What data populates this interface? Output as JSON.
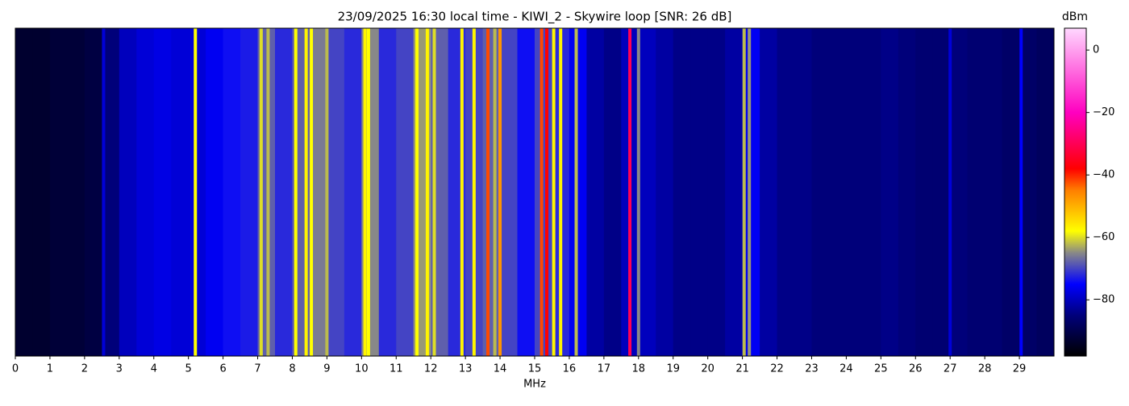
{
  "chart_data": {
    "type": "waterfall",
    "title": "23/09/2025 16:30 local time - KIWI_2 - Skywire loop [SNR: 26 dB]",
    "xlabel": "MHz",
    "colorbar_label": "dBm",
    "xlim": [
      0,
      30
    ],
    "xticks": [
      0,
      1,
      2,
      3,
      4,
      5,
      6,
      7,
      8,
      9,
      10,
      11,
      12,
      13,
      14,
      15,
      16,
      17,
      18,
      19,
      20,
      21,
      22,
      23,
      24,
      25,
      26,
      27,
      28,
      29
    ],
    "clim": [
      -98,
      7
    ],
    "cticks": [
      {
        "value": -80,
        "label": "−80"
      },
      {
        "value": -60,
        "label": "−60"
      },
      {
        "value": -40,
        "label": "−40"
      },
      {
        "value": -20,
        "label": "−20"
      },
      0
    ],
    "colorscale": [
      [
        -98,
        "#000000"
      ],
      [
        -85,
        "#00007a"
      ],
      [
        -75,
        "#0000ff"
      ],
      [
        -65,
        "#888888"
      ],
      [
        -58,
        "#ffff00"
      ],
      [
        -45,
        "#ff8000"
      ],
      [
        -38,
        "#ff0000"
      ],
      [
        -20,
        "#ff00c0"
      ],
      [
        7,
        "#ffd8ff"
      ]
    ],
    "x": [
      0,
      0.5,
      1,
      1.5,
      2,
      2.5,
      3,
      3.5,
      4,
      4.5,
      5,
      5.5,
      6,
      6.5,
      7,
      7.5,
      8,
      8.5,
      9,
      9.5,
      10,
      10.5,
      11,
      11.5,
      12,
      12.5,
      13,
      13.5,
      14,
      14.5,
      15,
      15.5,
      16,
      16.5,
      17,
      17.5,
      18,
      18.5,
      19,
      19.5,
      20,
      20.5,
      21,
      21.5,
      22,
      22.5,
      23,
      23.5,
      24,
      24.5,
      25,
      25.5,
      26,
      26.5,
      27,
      27.5,
      28,
      28.5,
      29,
      29.5
    ],
    "values": [
      -93,
      -93,
      -92,
      -92,
      -91,
      -85,
      -80,
      -78,
      -77,
      -78,
      -78,
      -76,
      -74,
      -73,
      -68,
      -72,
      -68,
      -66,
      -70,
      -72,
      -65,
      -72,
      -70,
      -64,
      -68,
      -72,
      -70,
      -68,
      -70,
      -74,
      -70,
      -72,
      -76,
      -82,
      -84,
      -80,
      -80,
      -82,
      -84,
      -84,
      -84,
      -82,
      -76,
      -82,
      -84,
      -84,
      -85,
      -85,
      -85,
      -85,
      -84,
      -85,
      -86,
      -86,
      -85,
      -86,
      -86,
      -87,
      -87,
      -88
    ],
    "signals": {
      "x": [
        2.55,
        5.2,
        7.1,
        7.3,
        8.1,
        8.4,
        8.55,
        9.0,
        10.1,
        10.2,
        11.6,
        11.9,
        12.1,
        12.9,
        13.25,
        13.65,
        13.85,
        14.0,
        15.2,
        15.35,
        15.55,
        15.75,
        16.2,
        17.75,
        18.0,
        21.05,
        21.2,
        27.0,
        29.05
      ],
      "values": [
        -78,
        -58,
        -60,
        -62,
        -58,
        -57,
        -58,
        -62,
        -57,
        -58,
        -58,
        -57,
        -60,
        -57,
        -57,
        -42,
        -62,
        -47,
        -42,
        -38,
        -57,
        -57,
        -62,
        -30,
        -65,
        -62,
        -64,
        -78,
        -75
      ]
    }
  }
}
